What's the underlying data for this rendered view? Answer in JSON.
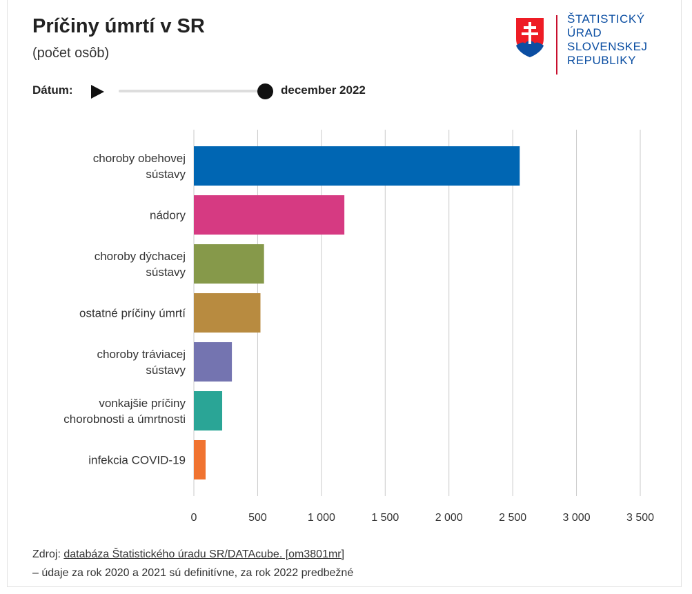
{
  "header": {
    "title": "Príčiny úmrtí v SR",
    "subtitle": "(počet osôb)"
  },
  "logo": {
    "icon": "slovak-coat-of-arms-icon",
    "lines": [
      "ŠTATISTICKÝ",
      "ÚRAD",
      "SLOVENSKEJ",
      "REPUBLIKY"
    ],
    "color": "#0b4ea2"
  },
  "controls": {
    "date_label": "Dátum:",
    "date_value": "december 2022",
    "slider_position": 1.0
  },
  "chart_data": {
    "type": "bar",
    "orientation": "horizontal",
    "categories": [
      [
        "choroby obehovej",
        "sústavy"
      ],
      [
        "nádory"
      ],
      [
        "choroby dýchacej",
        "sústavy"
      ],
      [
        "ostatné príčiny úmrtí"
      ],
      [
        "choroby tráviacej",
        "sústavy"
      ],
      [
        "vonkajšie príčiny",
        "chorobnosti a úmrtnosti"
      ],
      [
        "infekcia COVID-19"
      ]
    ],
    "values": [
      2555,
      1180,
      550,
      522,
      298,
      222,
      92
    ],
    "colors": [
      "#0066b3",
      "#d63a82",
      "#86994a",
      "#b88b40",
      "#7474b0",
      "#2aa596",
      "#f07330"
    ],
    "xlim": [
      0,
      3500
    ],
    "xticks": [
      0,
      500,
      1000,
      1500,
      2000,
      2500,
      3000,
      3500
    ],
    "xtick_labels": [
      "0",
      "500",
      "1 000",
      "1 500",
      "2 000",
      "2 500",
      "3 000",
      "3 500"
    ],
    "grid": true,
    "xlabel": "",
    "ylabel": ""
  },
  "footer": {
    "source_prefix": "Zdroj: ",
    "source_link": "databáza Štatistického úradu SR/DATAcube. [om3801mr]",
    "note": "– údaje za rok 2020 a 2021 sú definitívne, za rok 2022 predbežné"
  }
}
